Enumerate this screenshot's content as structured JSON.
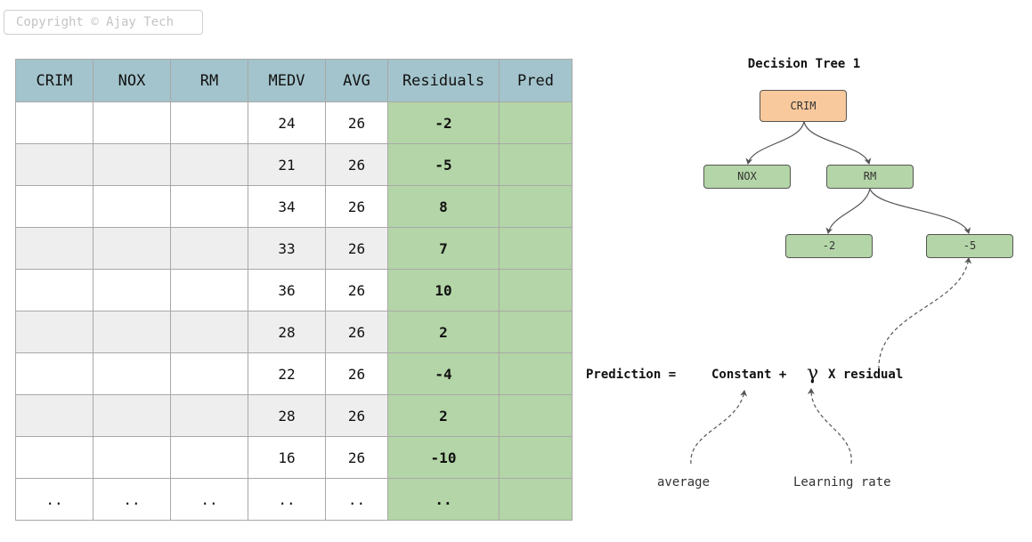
{
  "copyright": "Copyright © Ajay Tech",
  "table": {
    "headers": [
      "CRIM",
      "NOX",
      "RM",
      "MEDV",
      "AVG",
      "Residuals",
      "Pred"
    ],
    "rows": [
      [
        "",
        "",
        "",
        "24",
        "26",
        "-2",
        ""
      ],
      [
        "",
        "",
        "",
        "21",
        "26",
        "-5",
        ""
      ],
      [
        "",
        "",
        "",
        "34",
        "26",
        "8",
        ""
      ],
      [
        "",
        "",
        "",
        "33",
        "26",
        "7",
        ""
      ],
      [
        "",
        "",
        "",
        "36",
        "26",
        "10",
        ""
      ],
      [
        "",
        "",
        "",
        "28",
        "26",
        "2",
        ""
      ],
      [
        "",
        "",
        "",
        "22",
        "26",
        "-4",
        ""
      ],
      [
        "",
        "",
        "",
        "28",
        "26",
        "2",
        ""
      ],
      [
        "",
        "",
        "",
        "16",
        "26",
        "-10",
        ""
      ],
      [
        "..",
        "..",
        "..",
        "..",
        "..",
        "..",
        ""
      ]
    ]
  },
  "tree": {
    "title": "Decision Tree 1",
    "root": "CRIM",
    "left": "NOX",
    "right": "RM",
    "leaf_left": "-2",
    "leaf_right": "-5"
  },
  "formula": {
    "prediction": "Prediction =",
    "constant": "Constant +",
    "gamma": "γ",
    "residual": "X residual"
  },
  "notes": {
    "average": "average",
    "learning_rate": "Learning rate"
  }
}
